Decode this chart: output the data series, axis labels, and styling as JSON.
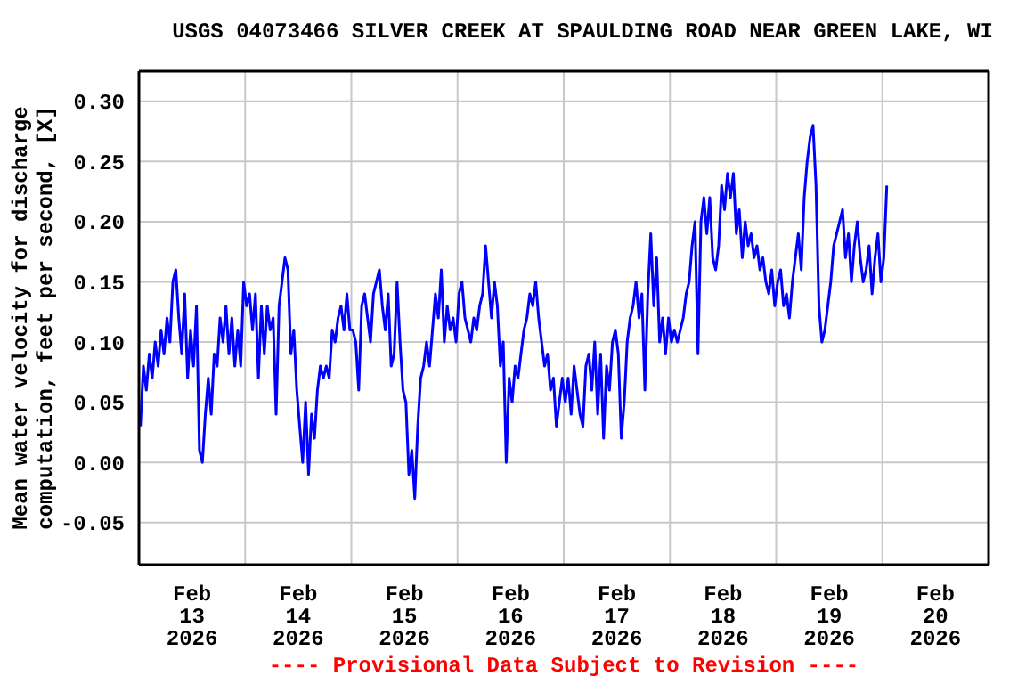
{
  "chart_data": {
    "type": "line",
    "title": "USGS 04073466 SILVER CREEK AT SPAULDING ROAD NEAR GREEN LAKE, WI",
    "ylabel": "Mean water velocity for discharge\ncomputation, feet per second, [X]",
    "annotations": [
      "---- Provisional Data Subject to Revision ----"
    ],
    "color": "#0000ff",
    "grid": true,
    "xlim": [
      "2026-02-13T00:00",
      "2026-02-21T00:00"
    ],
    "xticks": [
      {
        "value": "2026-02-13T00:00",
        "label": null
      },
      {
        "value": "2026-02-13T12:00",
        "label": "Feb\n13\n2026"
      },
      {
        "value": "2026-02-14T00:00",
        "label": null
      },
      {
        "value": "2026-02-14T12:00",
        "label": "Feb\n14\n2026"
      },
      {
        "value": "2026-02-15T00:00",
        "label": null
      },
      {
        "value": "2026-02-15T12:00",
        "label": "Feb\n15\n2026"
      },
      {
        "value": "2026-02-16T00:00",
        "label": null
      },
      {
        "value": "2026-02-16T12:00",
        "label": "Feb\n16\n2026"
      },
      {
        "value": "2026-02-17T00:00",
        "label": null
      },
      {
        "value": "2026-02-17T12:00",
        "label": "Feb\n17\n2026"
      },
      {
        "value": "2026-02-18T00:00",
        "label": null
      },
      {
        "value": "2026-02-18T12:00",
        "label": "Feb\n18\n2026"
      },
      {
        "value": "2026-02-19T00:00",
        "label": null
      },
      {
        "value": "2026-02-19T12:00",
        "label": "Feb\n19\n2026"
      },
      {
        "value": "2026-02-20T00:00",
        "label": null
      },
      {
        "value": "2026-02-20T12:00",
        "label": "Feb\n20\n2026"
      },
      {
        "value": "2026-02-21T00:00",
        "label": null
      }
    ],
    "ylim": [
      -0.085,
      0.325
    ],
    "yticks": [
      {
        "value": -0.05,
        "label": "-0.05"
      },
      {
        "value": 0,
        "label": "0.00"
      },
      {
        "value": 0.05,
        "label": "0.05"
      },
      {
        "value": 0.1,
        "label": "0.10"
      },
      {
        "value": 0.15,
        "label": "0.15"
      },
      {
        "value": 0.2,
        "label": "0.20"
      },
      {
        "value": 0.25,
        "label": "0.25"
      },
      {
        "value": 0.3,
        "label": "0.30"
      }
    ],
    "x": [
      "2026-02-13T00:20",
      "2026-02-13T01:00",
      "2026-02-13T01:40",
      "2026-02-13T02:20",
      "2026-02-13T03:00",
      "2026-02-13T03:40",
      "2026-02-13T04:20",
      "2026-02-13T05:00",
      "2026-02-13T05:40",
      "2026-02-13T06:20",
      "2026-02-13T07:00",
      "2026-02-13T07:40",
      "2026-02-13T08:20",
      "2026-02-13T09:00",
      "2026-02-13T09:40",
      "2026-02-13T10:20",
      "2026-02-13T11:00",
      "2026-02-13T11:40",
      "2026-02-13T12:20",
      "2026-02-13T13:00",
      "2026-02-13T13:40",
      "2026-02-13T14:20",
      "2026-02-13T15:00",
      "2026-02-13T15:40",
      "2026-02-13T16:20",
      "2026-02-13T17:00",
      "2026-02-13T17:40",
      "2026-02-13T18:20",
      "2026-02-13T19:00",
      "2026-02-13T19:40",
      "2026-02-13T20:20",
      "2026-02-13T21:00",
      "2026-02-13T21:40",
      "2026-02-13T22:20",
      "2026-02-13T23:00",
      "2026-02-13T23:40",
      "2026-02-14T00:20",
      "2026-02-14T01:00",
      "2026-02-14T01:40",
      "2026-02-14T02:20",
      "2026-02-14T03:00",
      "2026-02-14T03:40",
      "2026-02-14T04:20",
      "2026-02-14T05:00",
      "2026-02-14T05:40",
      "2026-02-14T06:20",
      "2026-02-14T07:00",
      "2026-02-14T07:40",
      "2026-02-14T08:20",
      "2026-02-14T09:00",
      "2026-02-14T09:40",
      "2026-02-14T10:20",
      "2026-02-14T11:00",
      "2026-02-14T11:40",
      "2026-02-14T12:20",
      "2026-02-14T13:00",
      "2026-02-14T13:40",
      "2026-02-14T14:20",
      "2026-02-14T15:00",
      "2026-02-14T15:40",
      "2026-02-14T16:20",
      "2026-02-14T17:00",
      "2026-02-14T17:40",
      "2026-02-14T18:20",
      "2026-02-14T19:00",
      "2026-02-14T19:40",
      "2026-02-14T20:20",
      "2026-02-14T21:00",
      "2026-02-14T21:40",
      "2026-02-14T22:20",
      "2026-02-14T23:00",
      "2026-02-14T23:40",
      "2026-02-15T00:20",
      "2026-02-15T01:00",
      "2026-02-15T01:40",
      "2026-02-15T02:20",
      "2026-02-15T03:00",
      "2026-02-15T03:40",
      "2026-02-15T04:20",
      "2026-02-15T05:00",
      "2026-02-15T05:40",
      "2026-02-15T06:20",
      "2026-02-15T07:00",
      "2026-02-15T07:40",
      "2026-02-15T08:20",
      "2026-02-15T09:00",
      "2026-02-15T09:40",
      "2026-02-15T10:20",
      "2026-02-15T11:00",
      "2026-02-15T11:40",
      "2026-02-15T12:20",
      "2026-02-15T13:00",
      "2026-02-15T13:40",
      "2026-02-15T14:20",
      "2026-02-15T15:00",
      "2026-02-15T15:40",
      "2026-02-15T16:20",
      "2026-02-15T17:00",
      "2026-02-15T17:40",
      "2026-02-15T18:20",
      "2026-02-15T19:00",
      "2026-02-15T19:40",
      "2026-02-15T20:20",
      "2026-02-15T21:00",
      "2026-02-15T21:40",
      "2026-02-15T22:20",
      "2026-02-15T23:00",
      "2026-02-15T23:40",
      "2026-02-16T00:20",
      "2026-02-16T01:00",
      "2026-02-16T01:40",
      "2026-02-16T02:20",
      "2026-02-16T03:00",
      "2026-02-16T03:40",
      "2026-02-16T04:20",
      "2026-02-16T05:00",
      "2026-02-16T05:40",
      "2026-02-16T06:20",
      "2026-02-16T07:00",
      "2026-02-16T07:40",
      "2026-02-16T08:20",
      "2026-02-16T09:00",
      "2026-02-16T09:40",
      "2026-02-16T10:20",
      "2026-02-16T11:00",
      "2026-02-16T11:40",
      "2026-02-16T12:20",
      "2026-02-16T13:00",
      "2026-02-16T13:40",
      "2026-02-16T14:20",
      "2026-02-16T15:00",
      "2026-02-16T15:40",
      "2026-02-16T16:20",
      "2026-02-16T17:00",
      "2026-02-16T17:40",
      "2026-02-16T18:20",
      "2026-02-16T19:00",
      "2026-02-16T19:40",
      "2026-02-16T20:20",
      "2026-02-16T21:00",
      "2026-02-16T21:40",
      "2026-02-16T22:20",
      "2026-02-16T23:00",
      "2026-02-16T23:40",
      "2026-02-17T00:20",
      "2026-02-17T01:00",
      "2026-02-17T01:40",
      "2026-02-17T02:20",
      "2026-02-17T03:00",
      "2026-02-17T03:40",
      "2026-02-17T04:20",
      "2026-02-17T05:00",
      "2026-02-17T05:40",
      "2026-02-17T06:20",
      "2026-02-17T07:00",
      "2026-02-17T07:40",
      "2026-02-17T08:20",
      "2026-02-17T09:00",
      "2026-02-17T09:40",
      "2026-02-17T10:20",
      "2026-02-17T11:00",
      "2026-02-17T11:40",
      "2026-02-17T12:20",
      "2026-02-17T13:00",
      "2026-02-17T13:40",
      "2026-02-17T14:20",
      "2026-02-17T15:00",
      "2026-02-17T15:40",
      "2026-02-17T16:20",
      "2026-02-17T17:00",
      "2026-02-17T17:40",
      "2026-02-17T18:20",
      "2026-02-17T19:00",
      "2026-02-17T19:40",
      "2026-02-17T20:20",
      "2026-02-17T21:00",
      "2026-02-17T21:40",
      "2026-02-17T22:20",
      "2026-02-17T23:00",
      "2026-02-17T23:40",
      "2026-02-18T00:20",
      "2026-02-18T01:00",
      "2026-02-18T01:40",
      "2026-02-18T02:20",
      "2026-02-18T03:00",
      "2026-02-18T03:40",
      "2026-02-18T04:20",
      "2026-02-18T05:00",
      "2026-02-18T05:40",
      "2026-02-18T06:20",
      "2026-02-18T07:00",
      "2026-02-18T07:40",
      "2026-02-18T08:20",
      "2026-02-18T09:00",
      "2026-02-18T09:40",
      "2026-02-18T10:20",
      "2026-02-18T11:00",
      "2026-02-18T11:40",
      "2026-02-18T12:20",
      "2026-02-18T13:00",
      "2026-02-18T13:40",
      "2026-02-18T14:20",
      "2026-02-18T15:00",
      "2026-02-18T15:40",
      "2026-02-18T16:20",
      "2026-02-18T17:00",
      "2026-02-18T17:40",
      "2026-02-18T18:20",
      "2026-02-18T19:00",
      "2026-02-18T19:40",
      "2026-02-18T20:20",
      "2026-02-18T21:00",
      "2026-02-18T21:40",
      "2026-02-18T22:20",
      "2026-02-18T23:00",
      "2026-02-18T23:40",
      "2026-02-19T00:20",
      "2026-02-19T01:00",
      "2026-02-19T01:40",
      "2026-02-19T02:20",
      "2026-02-19T03:00",
      "2026-02-19T03:40",
      "2026-02-19T04:20",
      "2026-02-19T05:00",
      "2026-02-19T05:40",
      "2026-02-19T06:20",
      "2026-02-19T07:00",
      "2026-02-19T07:40",
      "2026-02-19T08:20",
      "2026-02-19T09:00",
      "2026-02-19T09:40",
      "2026-02-19T10:20",
      "2026-02-19T11:00",
      "2026-02-19T11:40",
      "2026-02-19T12:20",
      "2026-02-19T13:00",
      "2026-02-19T13:40",
      "2026-02-19T14:20",
      "2026-02-19T15:00",
      "2026-02-19T15:40",
      "2026-02-19T16:20",
      "2026-02-19T17:00",
      "2026-02-19T17:40",
      "2026-02-19T18:20",
      "2026-02-19T19:00",
      "2026-02-19T19:40",
      "2026-02-19T20:20",
      "2026-02-19T21:00",
      "2026-02-19T21:40",
      "2026-02-19T22:20",
      "2026-02-19T23:00",
      "2026-02-19T23:40",
      "2026-02-20T00:20",
      "2026-02-20T01:00"
    ],
    "values": [
      0.03,
      0.08,
      0.06,
      0.09,
      0.07,
      0.1,
      0.08,
      0.11,
      0.09,
      0.12,
      0.1,
      0.15,
      0.16,
      0.12,
      0.09,
      0.14,
      0.07,
      0.11,
      0.08,
      0.13,
      0.01,
      0.0,
      0.04,
      0.07,
      0.04,
      0.09,
      0.08,
      0.12,
      0.1,
      0.13,
      0.09,
      0.12,
      0.08,
      0.11,
      0.08,
      0.15,
      0.13,
      0.14,
      0.11,
      0.14,
      0.07,
      0.13,
      0.09,
      0.13,
      0.11,
      0.12,
      0.04,
      0.13,
      0.15,
      0.17,
      0.16,
      0.09,
      0.11,
      0.06,
      0.03,
      0.0,
      0.05,
      -0.01,
      0.04,
      0.02,
      0.06,
      0.08,
      0.07,
      0.08,
      0.07,
      0.11,
      0.1,
      0.12,
      0.13,
      0.11,
      0.14,
      0.11,
      0.11,
      0.1,
      0.06,
      0.13,
      0.14,
      0.12,
      0.1,
      0.14,
      0.15,
      0.16,
      0.13,
      0.11,
      0.14,
      0.08,
      0.09,
      0.15,
      0.1,
      0.06,
      0.05,
      -0.01,
      0.01,
      -0.03,
      0.03,
      0.07,
      0.08,
      0.1,
      0.08,
      0.11,
      0.14,
      0.12,
      0.16,
      0.1,
      0.13,
      0.11,
      0.12,
      0.1,
      0.14,
      0.15,
      0.12,
      0.11,
      0.1,
      0.12,
      0.11,
      0.13,
      0.14,
      0.18,
      0.15,
      0.12,
      0.15,
      0.13,
      0.08,
      0.1,
      0.0,
      0.07,
      0.05,
      0.08,
      0.07,
      0.09,
      0.11,
      0.12,
      0.14,
      0.13,
      0.15,
      0.12,
      0.1,
      0.08,
      0.09,
      0.06,
      0.07,
      0.03,
      0.05,
      0.07,
      0.05,
      0.07,
      0.04,
      0.08,
      0.06,
      0.04,
      0.03,
      0.08,
      0.09,
      0.06,
      0.1,
      0.04,
      0.09,
      0.02,
      0.08,
      0.06,
      0.1,
      0.11,
      0.09,
      0.02,
      0.05,
      0.1,
      0.12,
      0.13,
      0.15,
      0.12,
      0.14,
      0.06,
      0.14,
      0.19,
      0.13,
      0.17,
      0.1,
      0.12,
      0.09,
      0.12,
      0.1,
      0.11,
      0.1,
      0.11,
      0.12,
      0.14,
      0.15,
      0.18,
      0.2,
      0.09,
      0.2,
      0.22,
      0.19,
      0.22,
      0.17,
      0.16,
      0.18,
      0.23,
      0.21,
      0.24,
      0.22,
      0.24,
      0.19,
      0.21,
      0.17,
      0.2,
      0.18,
      0.19,
      0.17,
      0.18,
      0.16,
      0.17,
      0.15,
      0.14,
      0.16,
      0.13,
      0.15,
      0.16,
      0.13,
      0.14,
      0.12,
      0.15,
      0.17,
      0.19,
      0.16,
      0.22,
      0.25,
      0.27,
      0.28,
      0.23,
      0.13,
      0.1,
      0.11,
      0.13,
      0.15,
      0.18,
      0.19,
      0.2,
      0.21,
      0.17,
      0.19,
      0.15,
      0.18,
      0.2,
      0.17,
      0.15,
      0.16,
      0.18,
      0.14,
      0.17,
      0.19,
      0.15,
      0.17,
      0.23
    ]
  }
}
